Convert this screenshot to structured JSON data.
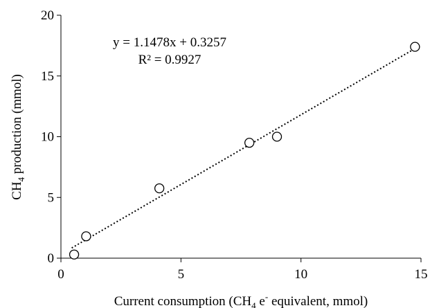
{
  "chart_data": {
    "type": "scatter",
    "x_axis": {
      "title_parts": [
        "Current consumption (CH",
        "4",
        " e",
        "-",
        " equivalent, mmol)"
      ],
      "range": [
        0,
        15
      ],
      "ticks": [
        0,
        5,
        10,
        15
      ],
      "tick_labels": [
        "0",
        "5",
        "10",
        "15"
      ]
    },
    "y_axis": {
      "title_parts": [
        "CH",
        "4",
        " production (mmol)"
      ],
      "range": [
        0,
        20
      ],
      "ticks": [
        0,
        5,
        10,
        15,
        20
      ],
      "tick_labels": [
        "0",
        "5",
        "10",
        "15",
        "20"
      ]
    },
    "points": [
      {
        "x": 0.55,
        "y": 0.3
      },
      {
        "x": 1.05,
        "y": 1.8
      },
      {
        "x": 4.1,
        "y": 5.75
      },
      {
        "x": 7.85,
        "y": 9.5
      },
      {
        "x": 9.0,
        "y": 10.0
      },
      {
        "x": 14.75,
        "y": 17.4
      }
    ],
    "trendline": {
      "slope": 1.1478,
      "intercept": 0.3257,
      "x_range": [
        0.45,
        14.85
      ],
      "style": "dotted",
      "equation_text": "y = 1.1478x + 0.3257",
      "r2_text": "R² = 0.9927"
    },
    "grid": false,
    "legend": "none"
  }
}
